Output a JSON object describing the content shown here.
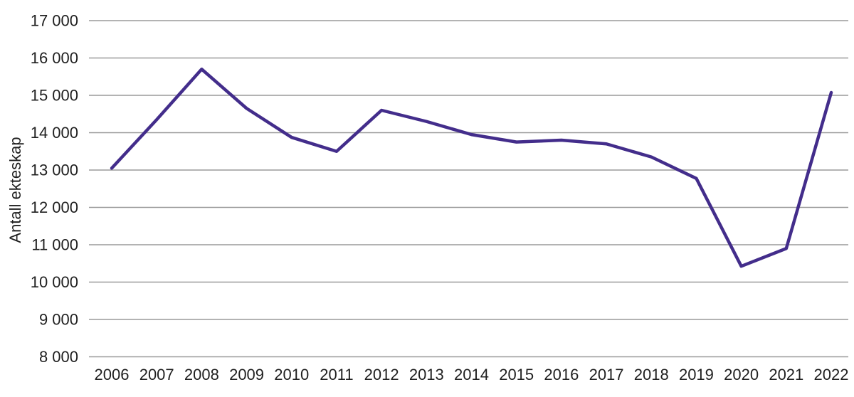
{
  "chart_data": {
    "type": "line",
    "title": "",
    "xlabel": "",
    "ylabel": "Antall ekteskap",
    "categories": [
      "2006",
      "2007",
      "2008",
      "2009",
      "2010",
      "2011",
      "2012",
      "2013",
      "2014",
      "2015",
      "2016",
      "2017",
      "2018",
      "2019",
      "2020",
      "2021",
      "2022"
    ],
    "series": [
      {
        "name": "Antall ekteskap",
        "values": [
          13050,
          14350,
          15700,
          14650,
          13875,
          13500,
          14600,
          14300,
          13950,
          13750,
          13800,
          13700,
          13350,
          12775,
          10425,
          10900,
          15075
        ]
      }
    ],
    "ylim": [
      8000,
      17000
    ],
    "ytick_step": 1000,
    "ytick_labels": [
      "8 000",
      "9 000",
      "10 000",
      "11 000",
      "12 000",
      "13 000",
      "14 000",
      "15 000",
      "16 000",
      "17 000"
    ],
    "grid": "horizontal-only",
    "legend": "none",
    "line_color": "#432d8b",
    "gridline_color": "#9a9a9a",
    "text_color": "#1f1f1f",
    "background_color": "#ffffff"
  }
}
